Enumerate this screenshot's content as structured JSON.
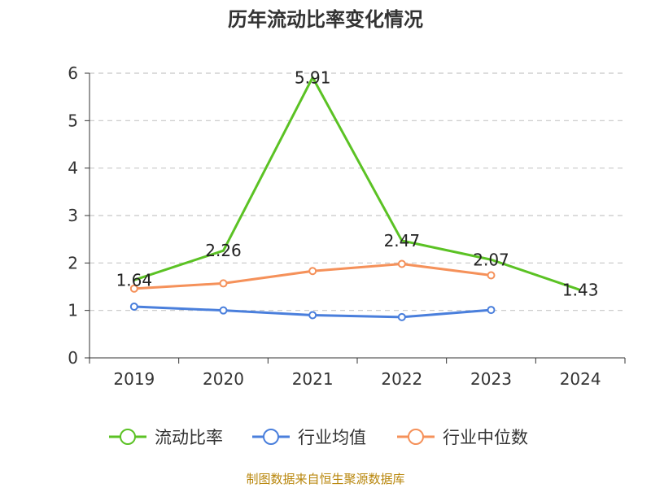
{
  "chart_data": {
    "type": "line",
    "title": "历年流动比率变化情况",
    "categories": [
      "2019",
      "2020",
      "2021",
      "2022",
      "2023",
      "2024"
    ],
    "y_ticks": [
      "0",
      "1",
      "2",
      "3",
      "4",
      "5",
      "6"
    ],
    "ylim": [
      0,
      6
    ],
    "grid": true,
    "legend_position": "bottom",
    "series": [
      {
        "name": "流动比率",
        "color": "#5bc224",
        "values": [
          1.64,
          2.26,
          5.91,
          2.47,
          2.07,
          1.43
        ],
        "labels": [
          "1.64",
          "2.26",
          "5.91",
          "2.47",
          "2.07",
          "1.43"
        ],
        "markers": false
      },
      {
        "name": "行业均值",
        "color": "#4a7fdc",
        "values": [
          1.08,
          1.0,
          0.9,
          0.86,
          1.01,
          null
        ],
        "markers": true
      },
      {
        "name": "行业中位数",
        "color": "#f5915a",
        "values": [
          1.46,
          1.57,
          1.83,
          1.98,
          1.74,
          null
        ],
        "markers": true
      }
    ]
  },
  "source_text": "制图数据来自恒生聚源数据库"
}
